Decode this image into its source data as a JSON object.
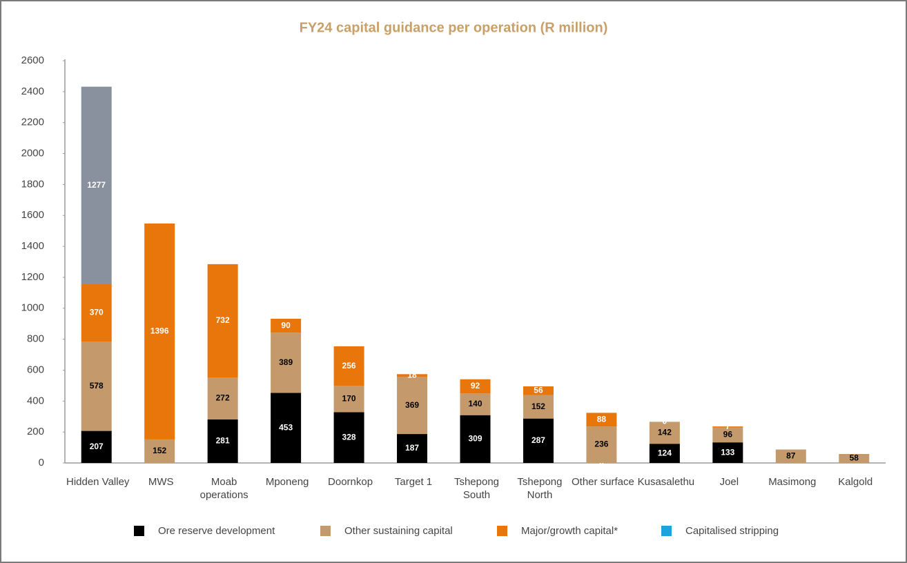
{
  "chart_data": {
    "type": "stacked_bar",
    "title": "FY24 capital guidance per operation (R million)",
    "categories": [
      "Hidden Valley",
      "MWS",
      "Moab operations",
      "Mponeng",
      "Doornkop",
      "Target 1",
      "Tshepong South",
      "Tshepong North",
      "Other surface",
      "Kusasalethu",
      "Joel",
      "Masimong",
      "Kalgold"
    ],
    "series": [
      {
        "name": "Ore reserve development",
        "color": "#000000",
        "label_color": "#ffffff",
        "values": [
          207,
          null,
          281,
          453,
          328,
          187,
          309,
          287,
          0,
          124,
          133,
          null,
          null
        ]
      },
      {
        "name": "Other sustaining capital",
        "color": "#c49a6c",
        "label_color": "#000000",
        "values": [
          578,
          152,
          272,
          389,
          170,
          369,
          140,
          152,
          236,
          142,
          96,
          87,
          58
        ]
      },
      {
        "name": "Major/growth capital*",
        "color": "#e8760a",
        "label_color": "#ffffff",
        "values": [
          370,
          1396,
          732,
          90,
          256,
          18,
          92,
          56,
          88,
          0,
          7,
          null,
          null
        ]
      },
      {
        "name": "Capitalised stripping",
        "color": "#1ea3dc",
        "bar_color": "#8a919e",
        "label_color": "#ffffff",
        "values": [
          1277,
          null,
          null,
          null,
          null,
          null,
          null,
          null,
          null,
          null,
          null,
          null,
          null
        ]
      }
    ],
    "ylim": [
      0,
      2600
    ],
    "yticks": [
      0,
      200,
      400,
      600,
      800,
      1000,
      1200,
      1400,
      1600,
      1800,
      2000,
      2200,
      2400,
      2600
    ],
    "grid": false
  }
}
